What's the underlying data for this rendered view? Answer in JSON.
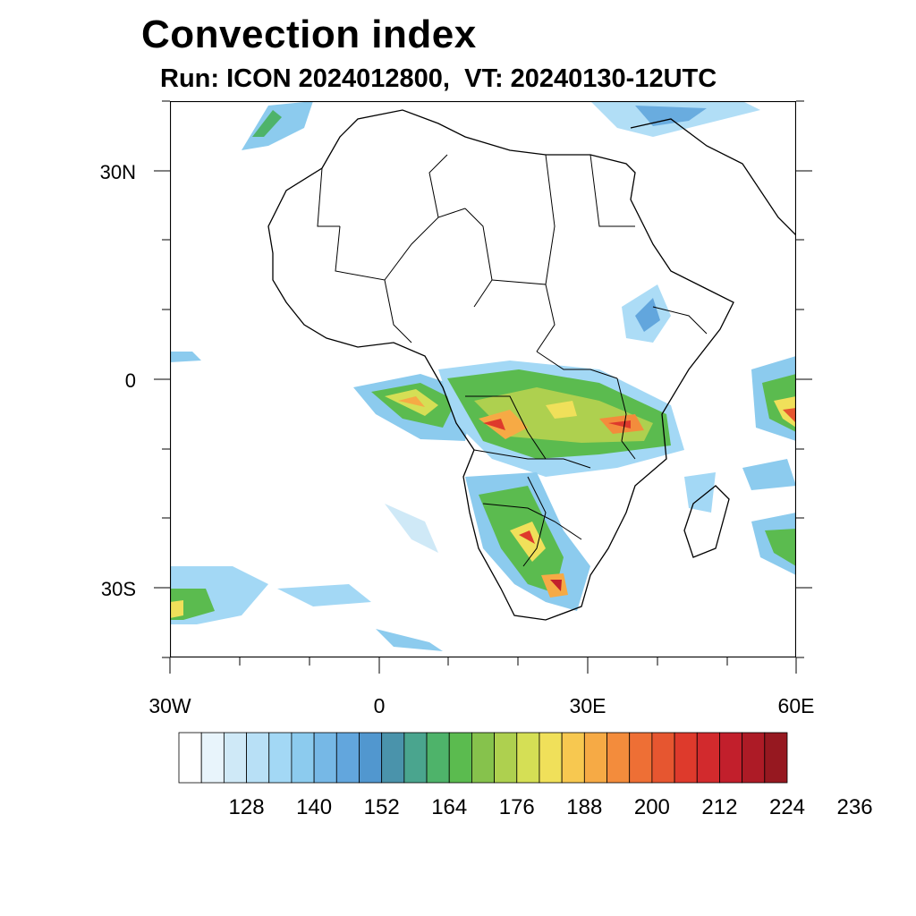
{
  "title": "Convection index",
  "subtitle": "Run: ICON 2024012800,  VT: 20240130-12UTC",
  "axes": {
    "lat_labels": [
      "30N",
      "0",
      "30S"
    ],
    "lon_labels": [
      "30W",
      "0",
      "30E",
      "60E"
    ]
  },
  "colorbar": {
    "labels": [
      "128",
      "140",
      "152",
      "164",
      "176",
      "188",
      "200",
      "212",
      "224",
      "236"
    ],
    "colors": [
      "#ffffff",
      "#e8f4fb",
      "#cfe9f7",
      "#b8e0f6",
      "#a3d8f5",
      "#8ccbee",
      "#76b8e6",
      "#62a6dd",
      "#5197cf",
      "#4a93ab",
      "#4aa58e",
      "#4eb36a",
      "#5bbb4f",
      "#86c24c",
      "#aed04f",
      "#d5df55",
      "#f0e05a",
      "#f7c850",
      "#f6aa45",
      "#f38c3c",
      "#ee6f35",
      "#e65630",
      "#de3a2c",
      "#d22a2d",
      "#c21f2c",
      "#ad1b26",
      "#961820"
    ]
  },
  "icons": {
    "map": "africa-convection-map"
  }
}
